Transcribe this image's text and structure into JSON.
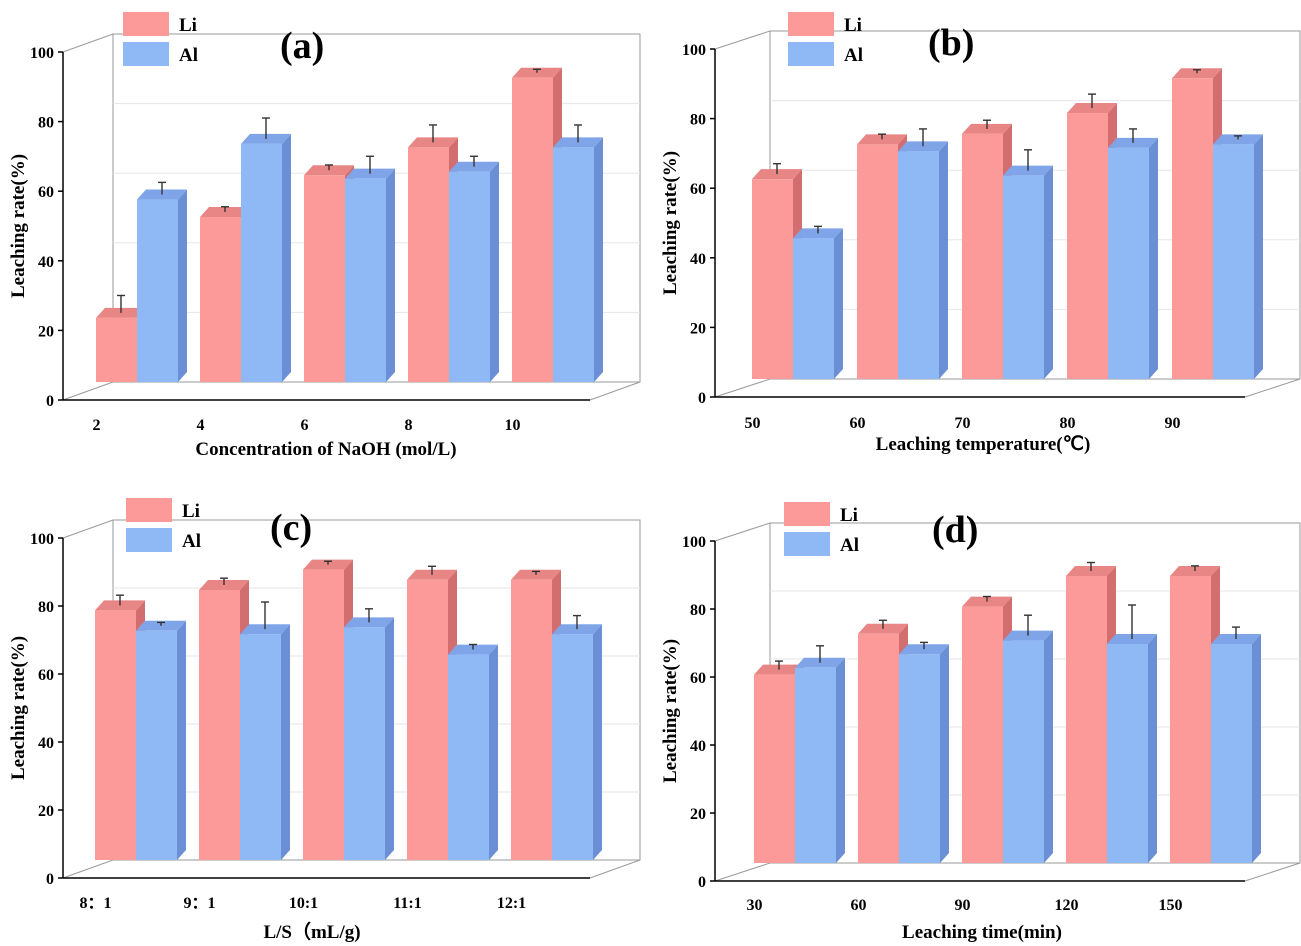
{
  "series_colors": {
    "Li": {
      "front": "#fc9a9a",
      "side": "#d36e70",
      "top": "#e88585"
    },
    "Al": {
      "front": "#8fb9f5",
      "side": "#6a8fd4",
      "top": "#7fa5e8"
    }
  },
  "chart_data": [
    {
      "type": "bar",
      "panel": "(a)",
      "xlabel": "Concentration of NaOH (mol/L)",
      "ylabel": "Leaching rate(%)",
      "ylim": [
        0,
        100
      ],
      "yticks": [
        "0",
        "20",
        "40",
        "60",
        "80",
        "100"
      ],
      "categories": [
        "2",
        "4",
        "6",
        "8",
        "10"
      ],
      "series": [
        {
          "name": "Li",
          "values": [
            19,
            48,
            60,
            68,
            88
          ],
          "errors": [
            5,
            1.5,
            1.5,
            5,
            1
          ]
        },
        {
          "name": "Al",
          "values": [
            53,
            69,
            59,
            61,
            68
          ],
          "errors": [
            3.5,
            6,
            5,
            3,
            5
          ]
        }
      ],
      "legend": [
        "Li",
        "Al"
      ]
    },
    {
      "type": "bar",
      "panel": "(b)",
      "xlabel": "Leaching temperature(℃)",
      "ylabel": "Leaching rate(%)",
      "ylim": [
        0,
        100
      ],
      "yticks": [
        "0",
        "20",
        "40",
        "60",
        "80",
        "100"
      ],
      "categories": [
        "50",
        "60",
        "70",
        "80",
        "90"
      ],
      "series": [
        {
          "name": "Li",
          "values": [
            58,
            68,
            71,
            77,
            87
          ],
          "errors": [
            3,
            1.5,
            2.5,
            4,
            1
          ]
        },
        {
          "name": "Al",
          "values": [
            41,
            66,
            59,
            67,
            68
          ],
          "errors": [
            2,
            5,
            6,
            4,
            1
          ]
        }
      ],
      "legend": [
        "Li",
        "Al"
      ]
    },
    {
      "type": "bar",
      "panel": "(c)",
      "xlabel": "L/S（mL/g)",
      "ylabel": "Leaching rate(%)",
      "ylim": [
        0,
        100
      ],
      "yticks": [
        "0",
        "20",
        "40",
        "60",
        "80",
        "100"
      ],
      "categories": [
        "8：1",
        "9：1",
        "10:1",
        "11:1",
        "12:1"
      ],
      "series": [
        {
          "name": "Li",
          "values": [
            74,
            80,
            86,
            83,
            83
          ],
          "errors": [
            3,
            2,
            1,
            2.5,
            1
          ]
        },
        {
          "name": "Al",
          "values": [
            68,
            67,
            69,
            61,
            67
          ],
          "errors": [
            1,
            8,
            4,
            1.5,
            4
          ]
        }
      ],
      "legend": [
        "Li",
        "Al"
      ]
    },
    {
      "type": "bar",
      "panel": "(d)",
      "xlabel": "Leaching time(min)",
      "ylabel": "Leaching rate(%)",
      "ylim": [
        0,
        100
      ],
      "yticks": [
        "0",
        "20",
        "40",
        "60",
        "80",
        "100"
      ],
      "categories": [
        "30",
        "60",
        "90",
        "120",
        "150"
      ],
      "series": [
        {
          "name": "Li",
          "values": [
            56,
            68,
            76,
            85,
            85
          ],
          "errors": [
            2.5,
            2.5,
            1.5,
            2.5,
            1.5
          ]
        },
        {
          "name": "Al",
          "values": [
            58,
            62,
            66,
            65,
            65
          ],
          "errors": [
            5,
            2,
            6,
            10,
            3.5
          ]
        }
      ],
      "legend": [
        "Li",
        "Al"
      ]
    }
  ]
}
